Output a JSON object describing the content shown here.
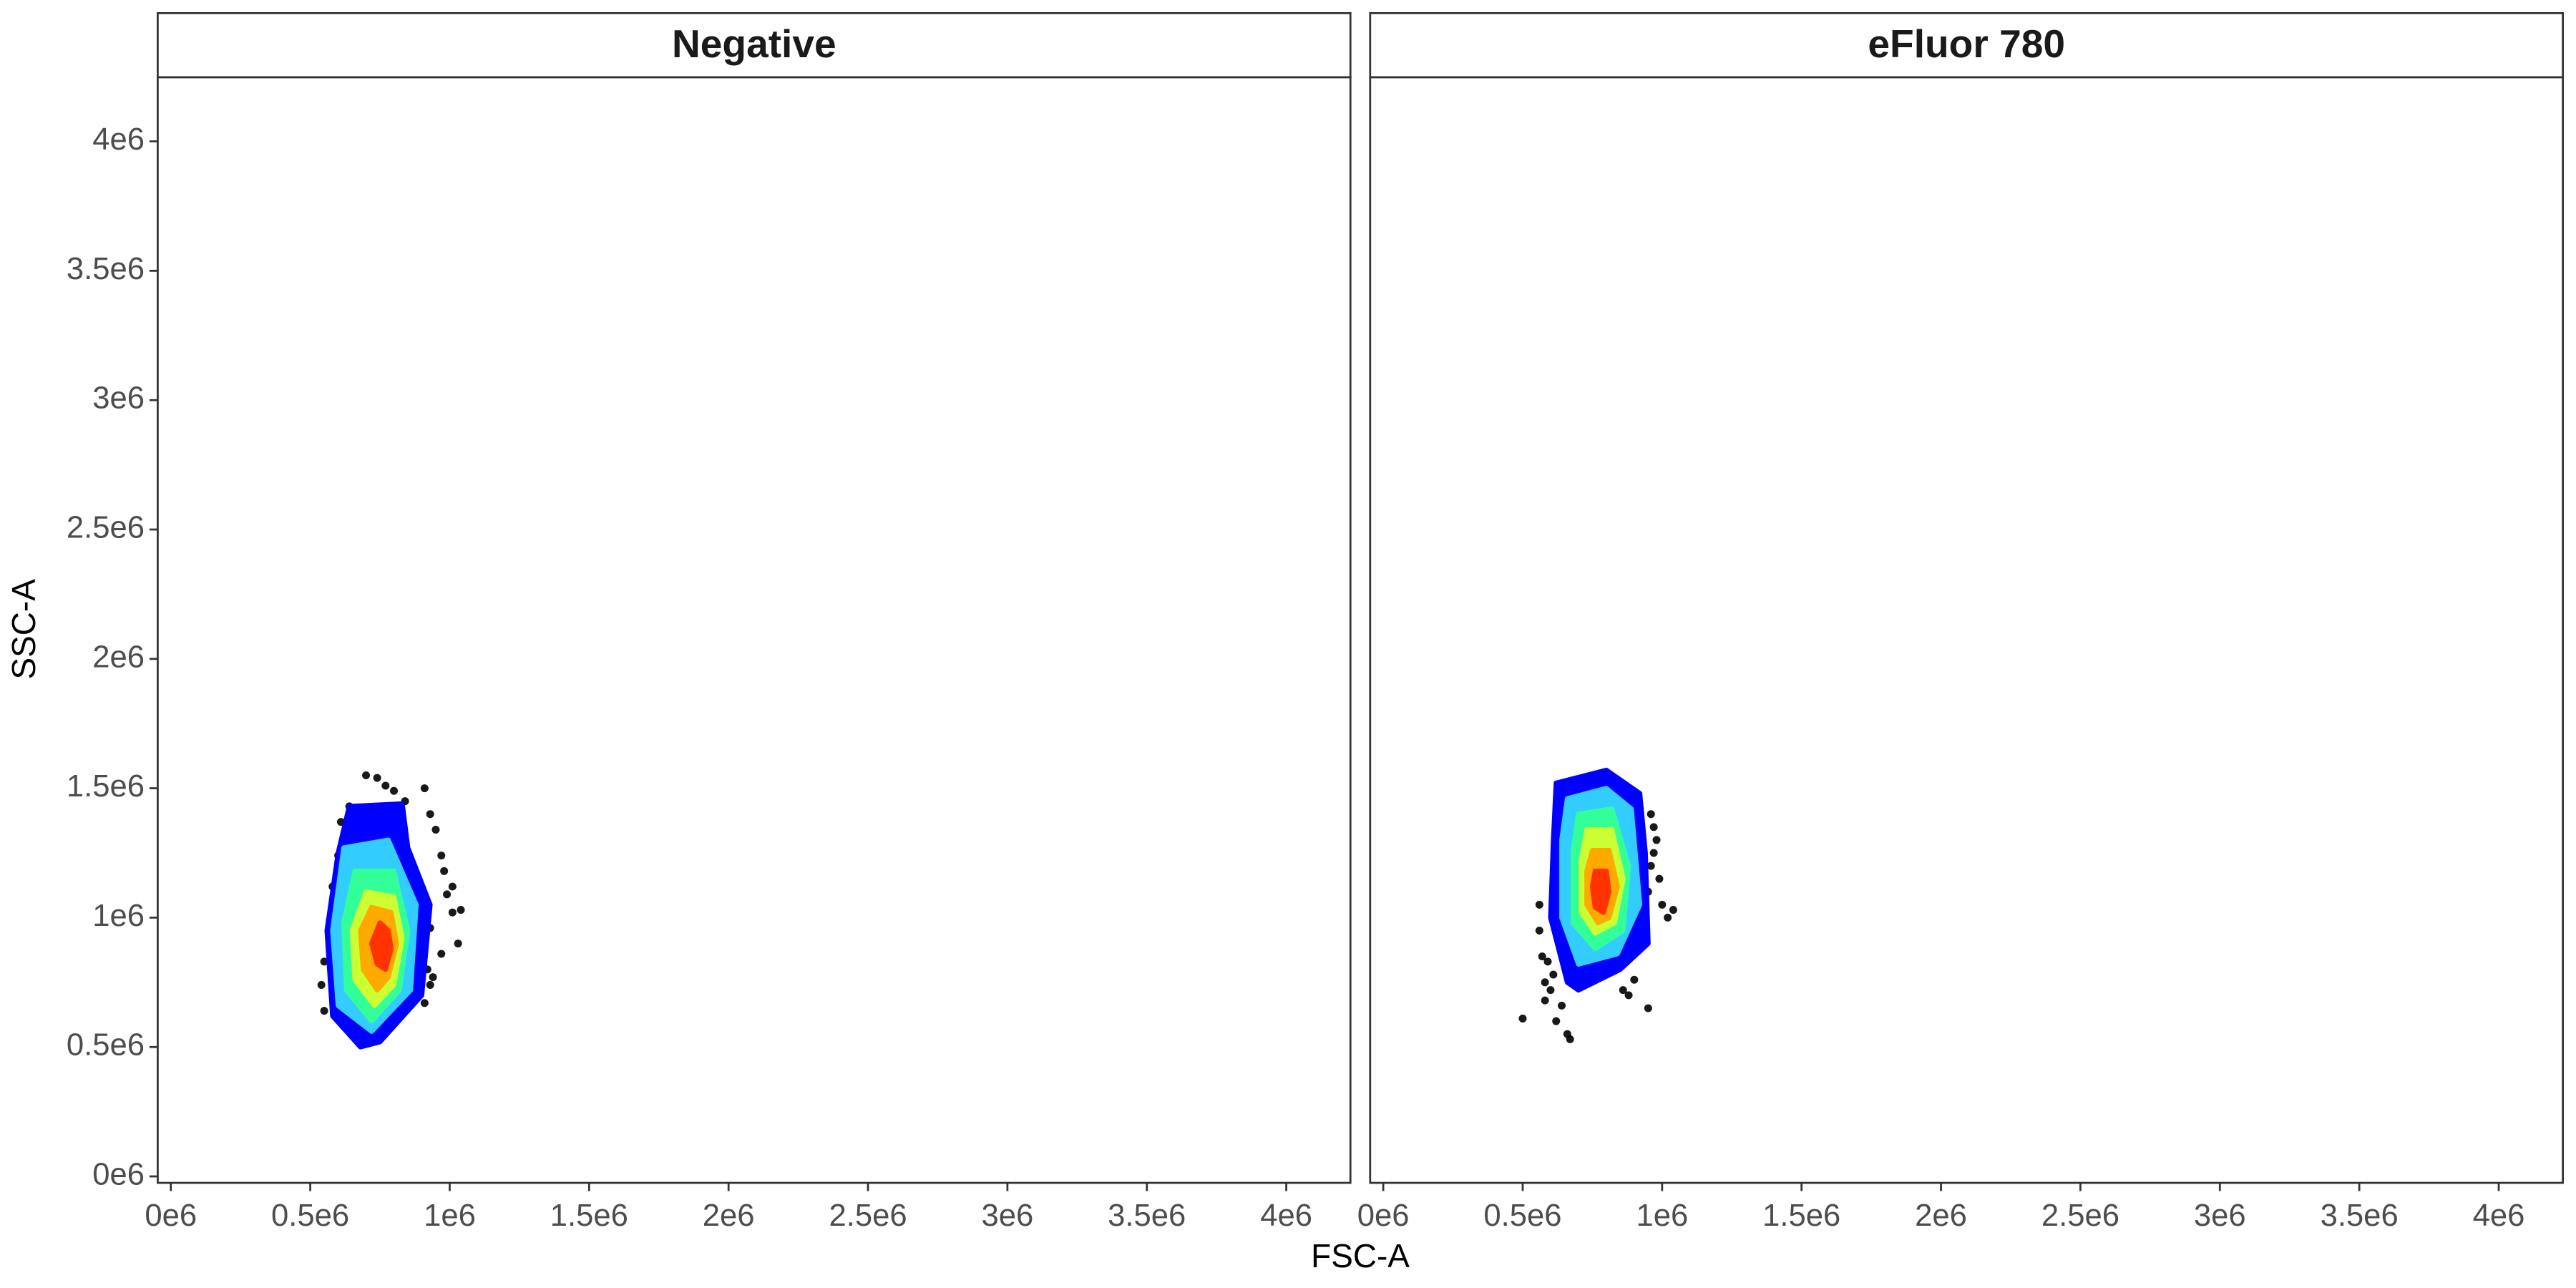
{
  "chart_data": [
    {
      "type": "scatter",
      "title": "Negative",
      "xlabel": "FSC-A",
      "ylabel": "SSC-A",
      "x": [
        700000,
        740000,
        770000,
        800000,
        640000,
        610000,
        600000,
        580000,
        570000,
        550000,
        540000,
        550000,
        930000,
        950000,
        970000,
        980000,
        990000,
        1010000,
        1040000,
        930000,
        920000,
        930000,
        910000,
        940000,
        860000,
        1010000,
        910000,
        840000,
        1030000,
        970000
      ],
      "y": [
        1550000,
        1540000,
        1510000,
        1490000,
        1430000,
        1370000,
        1240000,
        1120000,
        990000,
        830000,
        740000,
        640000,
        1400000,
        1340000,
        1240000,
        1180000,
        1090000,
        1020000,
        1030000,
        960000,
        800000,
        740000,
        670000,
        770000,
        740000,
        1120000,
        1500000,
        1450000,
        900000,
        860000
      ],
      "point_color": "#000000",
      "contours": [
        {
          "color": "#0000ff",
          "x": [
            640000,
            830000,
            850000,
            930000,
            900000,
            750000,
            680000,
            580000,
            560000,
            600000
          ],
          "y": [
            1430000,
            1440000,
            1270000,
            1050000,
            700000,
            520000,
            500000,
            620000,
            950000,
            1250000
          ]
        },
        {
          "color": "#33ccff",
          "x": [
            620000,
            780000,
            880000,
            860000,
            720000,
            600000,
            580000
          ],
          "y": [
            1270000,
            1300000,
            1050000,
            720000,
            560000,
            660000,
            950000
          ]
        },
        {
          "color": "#33ff99",
          "x": [
            660000,
            800000,
            850000,
            820000,
            720000,
            630000,
            620000
          ],
          "y": [
            1180000,
            1180000,
            950000,
            720000,
            600000,
            720000,
            980000
          ]
        },
        {
          "color": "#ccff33",
          "x": [
            700000,
            800000,
            830000,
            800000,
            730000,
            660000,
            650000
          ],
          "y": [
            1100000,
            1080000,
            920000,
            740000,
            660000,
            760000,
            950000
          ]
        },
        {
          "color": "#ffaa00",
          "x": [
            720000,
            790000,
            810000,
            780000,
            740000,
            690000,
            680000
          ],
          "y": [
            1040000,
            1020000,
            900000,
            770000,
            720000,
            800000,
            950000
          ]
        },
        {
          "color": "#ff3300",
          "x": [
            750000,
            780000,
            790000,
            770000,
            740000,
            720000
          ],
          "y": [
            980000,
            950000,
            880000,
            800000,
            820000,
            900000
          ]
        }
      ],
      "xlim": [
        -47000,
        4230000
      ],
      "ylim": [
        -25000,
        4248000
      ],
      "xticks": [
        {
          "value": 0,
          "label": "0e6"
        },
        {
          "value": 500000,
          "label": "0.5e6"
        },
        {
          "value": 1000000,
          "label": "1e6"
        },
        {
          "value": 1500000,
          "label": "1.5e6"
        },
        {
          "value": 2000000,
          "label": "2e6"
        },
        {
          "value": 2500000,
          "label": "2.5e6"
        },
        {
          "value": 3000000,
          "label": "3e6"
        },
        {
          "value": 3500000,
          "label": "3.5e6"
        },
        {
          "value": 4000000,
          "label": "4e6"
        }
      ],
      "yticks": [
        {
          "value": 0,
          "label": "0e6"
        },
        {
          "value": 500000,
          "label": "0.5e6"
        },
        {
          "value": 1000000,
          "label": "1e6"
        },
        {
          "value": 1500000,
          "label": "1.5e6"
        },
        {
          "value": 2000000,
          "label": "2e6"
        },
        {
          "value": 2500000,
          "label": "2.5e6"
        },
        {
          "value": 3000000,
          "label": "3e6"
        },
        {
          "value": 3500000,
          "label": "3.5e6"
        },
        {
          "value": 4000000,
          "label": "4e6"
        }
      ]
    },
    {
      "type": "scatter",
      "title": "eFluor 780",
      "x": [
        500000,
        620000,
        660000,
        670000,
        600000,
        580000,
        610000,
        570000,
        590000,
        560000,
        560000,
        580000,
        860000,
        880000,
        950000,
        900000,
        960000,
        970000,
        980000,
        970000,
        950000,
        1000000,
        1020000,
        1040000,
        990000,
        920000,
        960000,
        640000
      ],
      "y": [
        610000,
        600000,
        550000,
        530000,
        720000,
        750000,
        780000,
        850000,
        830000,
        950000,
        1050000,
        680000,
        720000,
        700000,
        650000,
        760000,
        1200000,
        1250000,
        1300000,
        1350000,
        1100000,
        1050000,
        1000000,
        1030000,
        1150000,
        1420000,
        1400000,
        660000
      ],
      "point_color": "#000000",
      "contours": [
        {
          "color": "#0000ff",
          "x": [
            620000,
            800000,
            920000,
            940000,
            950000,
            850000,
            700000,
            660000,
            600000,
            610000
          ],
          "y": [
            1520000,
            1570000,
            1480000,
            1250000,
            900000,
            800000,
            720000,
            750000,
            1000000,
            1300000
          ]
        },
        {
          "color": "#33ccff",
          "x": [
            660000,
            800000,
            890000,
            920000,
            840000,
            700000,
            640000,
            640000
          ],
          "y": [
            1460000,
            1500000,
            1420000,
            1050000,
            860000,
            820000,
            1000000,
            1300000
          ]
        },
        {
          "color": "#33ff99",
          "x": [
            700000,
            820000,
            880000,
            860000,
            760000,
            680000,
            680000
          ],
          "y": [
            1400000,
            1420000,
            1200000,
            950000,
            880000,
            980000,
            1250000
          ]
        },
        {
          "color": "#ccff33",
          "x": [
            730000,
            820000,
            860000,
            830000,
            760000,
            710000,
            710000
          ],
          "y": [
            1340000,
            1340000,
            1150000,
            980000,
            940000,
            1020000,
            1220000
          ]
        },
        {
          "color": "#ffaa00",
          "x": [
            750000,
            810000,
            840000,
            810000,
            770000,
            730000,
            730000
          ],
          "y": [
            1260000,
            1260000,
            1120000,
            1000000,
            980000,
            1050000,
            1180000
          ]
        },
        {
          "color": "#ff3300",
          "x": [
            760000,
            800000,
            810000,
            790000,
            760000,
            750000
          ],
          "y": [
            1180000,
            1180000,
            1100000,
            1020000,
            1040000,
            1120000
          ]
        }
      ],
      "xlim": [
        -47000,
        4230000
      ],
      "ylim": [
        -25000,
        4248000
      ],
      "xticks": [
        {
          "value": 0,
          "label": "0e6"
        },
        {
          "value": 500000,
          "label": "0.5e6"
        },
        {
          "value": 1000000,
          "label": "1e6"
        },
        {
          "value": 1500000,
          "label": "1.5e6"
        },
        {
          "value": 2000000,
          "label": "2e6"
        },
        {
          "value": 2500000,
          "label": "2.5e6"
        },
        {
          "value": 3000000,
          "label": "3e6"
        },
        {
          "value": 3500000,
          "label": "3.5e6"
        },
        {
          "value": 4000000,
          "label": "4e6"
        }
      ]
    }
  ]
}
